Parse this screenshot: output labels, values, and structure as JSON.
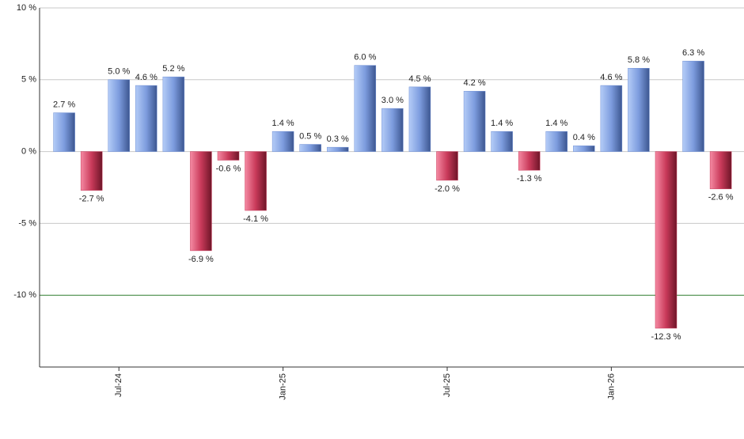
{
  "chart_data": {
    "type": "bar",
    "categories": [
      null,
      null,
      "Jul-24",
      null,
      null,
      null,
      null,
      null,
      "Jan-25",
      null,
      null,
      null,
      null,
      null,
      "Jul-25",
      null,
      null,
      null,
      null,
      null,
      "Jan-26",
      null,
      null,
      null,
      null
    ],
    "values": [
      2.7,
      -2.7,
      5.0,
      4.6,
      5.2,
      -6.9,
      -0.6,
      -4.1,
      1.4,
      0.5,
      0.3,
      6.0,
      3.0,
      4.5,
      -2.0,
      4.2,
      1.4,
      -1.3,
      1.4,
      0.4,
      4.6,
      5.8,
      -12.3,
      6.3,
      -2.6
    ],
    "value_labels": [
      "2.7 %",
      "-2.7 %",
      "5.0 %",
      "4.6 %",
      "5.2 %",
      "-6.9 %",
      "-0.6 %",
      "-4.1 %",
      "1.4 %",
      "0.5 %",
      "0.3 %",
      "6.0 %",
      "3.0 %",
      "4.5 %",
      "-2.0 %",
      "4.2 %",
      "1.4 %",
      "-1.3 %",
      "1.4 %",
      "0.4 %",
      "4.6 %",
      "5.8 %",
      "-12.3 %",
      "6.3 %",
      "-2.6 %"
    ],
    "positive_color": "#6f8fd4",
    "negative_color": "#c93a5a",
    "ylim": [
      -15,
      10
    ],
    "yticks": [
      {
        "value": 10,
        "label": "10 %"
      },
      {
        "value": 5,
        "label": "5 %"
      },
      {
        "value": 0,
        "label": "0 %"
      },
      {
        "value": -5,
        "label": "-5 %"
      },
      {
        "value": -10,
        "label": "-10 %"
      }
    ],
    "grid": true,
    "reference_line": {
      "value": -10,
      "color": "#2e7d2e"
    }
  }
}
